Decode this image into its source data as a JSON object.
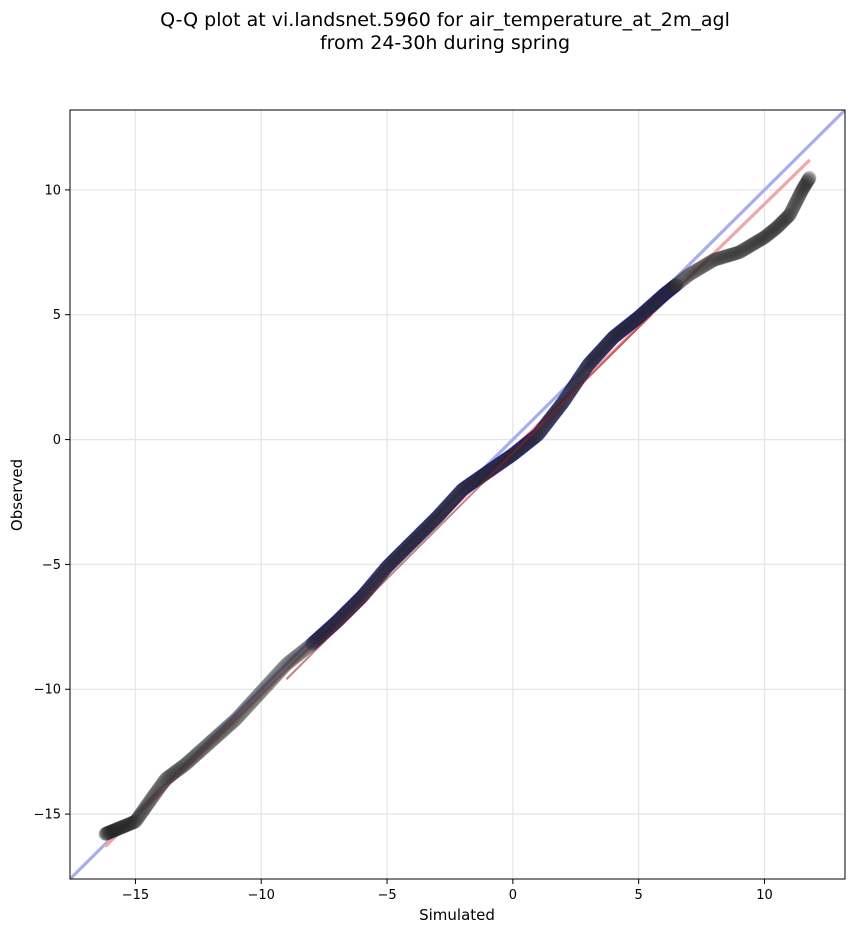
{
  "chart_data": {
    "type": "scatter",
    "title_line1": "Q-Q plot at vi.landsnet.5960 for air_temperature_at_2m_agl",
    "title_line2": "from 24-30h during spring",
    "xlabel": "Simulated",
    "ylabel": "Observed",
    "xlim": [
      -17.6,
      13.2
    ],
    "ylim": [
      -17.6,
      13.2
    ],
    "xticks": [
      {
        "value": -15,
        "label": "−15"
      },
      {
        "value": -10,
        "label": "−10"
      },
      {
        "value": -5,
        "label": "−5"
      },
      {
        "value": 0,
        "label": "0"
      },
      {
        "value": 5,
        "label": "5"
      },
      {
        "value": 10,
        "label": "10"
      }
    ],
    "yticks": [
      {
        "value": -15,
        "label": "−15"
      },
      {
        "value": -10,
        "label": "−10"
      },
      {
        "value": -5,
        "label": "−5"
      },
      {
        "value": 0,
        "label": "0"
      },
      {
        "value": 5,
        "label": "5"
      },
      {
        "value": 10,
        "label": "10"
      }
    ],
    "grid": true,
    "colors": {
      "points": "#2b2b2b",
      "points_dense_edge": "#0a0a6e",
      "identity_line": "#a8acf0",
      "fit_line": "#f3a6a6",
      "fit_line_dense": "#9b1c1c",
      "grid": "#e6e6e6"
    },
    "identity_line": {
      "from": [
        -17.6,
        -17.6
      ],
      "to": [
        13.2,
        13.2
      ]
    },
    "fit_line": {
      "from": [
        -16.2,
        -16.3
      ],
      "to": [
        11.8,
        11.2
      ]
    },
    "curve": [
      [
        -16.2,
        -15.8
      ],
      [
        -15.0,
        -15.3
      ],
      [
        -14.3,
        -14.3
      ],
      [
        -13.8,
        -13.6
      ],
      [
        -13.0,
        -13.0
      ],
      [
        -12.0,
        -12.1
      ],
      [
        -11.0,
        -11.2
      ],
      [
        -10.0,
        -10.1
      ],
      [
        -9.0,
        -9.0
      ],
      [
        -8.0,
        -8.2
      ],
      [
        -7.0,
        -7.3
      ],
      [
        -6.0,
        -6.3
      ],
      [
        -5.0,
        -5.1
      ],
      [
        -4.0,
        -4.1
      ],
      [
        -3.0,
        -3.1
      ],
      [
        -2.0,
        -2.0
      ],
      [
        -1.0,
        -1.3
      ],
      [
        0.0,
        -0.6
      ],
      [
        1.0,
        0.2
      ],
      [
        2.0,
        1.5
      ],
      [
        3.0,
        3.0
      ],
      [
        4.0,
        4.1
      ],
      [
        5.0,
        4.9
      ],
      [
        6.0,
        5.8
      ],
      [
        7.0,
        6.6
      ],
      [
        8.0,
        7.2
      ],
      [
        9.0,
        7.5
      ],
      [
        10.0,
        8.1
      ],
      [
        10.5,
        8.5
      ],
      [
        11.0,
        9.0
      ],
      [
        11.5,
        10.0
      ],
      [
        11.8,
        10.5
      ]
    ]
  }
}
